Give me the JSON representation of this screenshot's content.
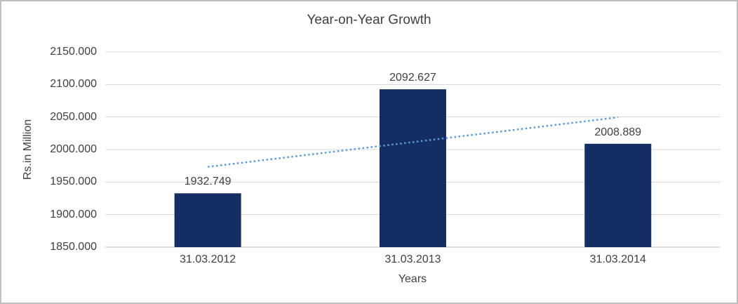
{
  "frame": {
    "border_color": "#bfbfbf",
    "background_color": "#ffffff"
  },
  "chart_data": {
    "type": "bar",
    "title": "Year-on-Year Growth",
    "categories": [
      "31.03.2012",
      "31.03.2013",
      "31.03.2014"
    ],
    "values": [
      1932.749,
      2092.627,
      2008.889
    ],
    "data_labels": [
      "1932.749",
      "2092.627",
      "2008.889"
    ],
    "xlabel": "Years",
    "ylabel": "Rs.in Million",
    "ylim": [
      1850,
      2150
    ],
    "ytick_step": 50,
    "ytick_labels": [
      "1850.000",
      "1900.000",
      "1950.000",
      "2000.000",
      "2050.000",
      "2100.000",
      "2150.000"
    ],
    "grid": true,
    "legend": "none",
    "bar_color": "#142e63",
    "gridline_color": "#d9d9d9",
    "axis_color": "#bfbfbf",
    "text_color": "#404040",
    "trendline": {
      "type": "linear",
      "line_style": "dotted",
      "color": "#5b9bd5",
      "start_value": 1973.352,
      "end_value": 2049.492
    }
  }
}
